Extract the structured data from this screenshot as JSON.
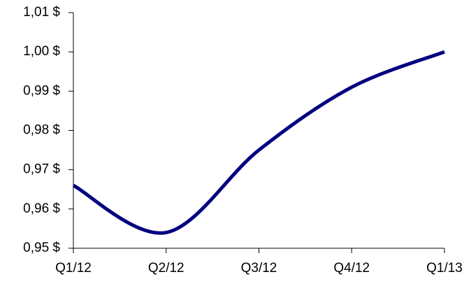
{
  "chart_data": {
    "type": "line",
    "categories": [
      "Q1/12",
      "Q2/12",
      "Q3/12",
      "Q4/12",
      "Q1/13"
    ],
    "values": [
      0.966,
      0.954,
      0.975,
      0.991,
      1.0
    ],
    "color": "#000080",
    "ylim": [
      0.95,
      1.01
    ],
    "yticks": [
      {
        "value": 0.95,
        "label": "0,95 $"
      },
      {
        "value": 0.96,
        "label": "0,96 $"
      },
      {
        "value": 0.97,
        "label": "0,97 $"
      },
      {
        "value": 0.98,
        "label": "0,98 $"
      },
      {
        "value": 0.99,
        "label": "0,99 $"
      },
      {
        "value": 1.0,
        "label": "1,00 $"
      },
      {
        "value": 1.01,
        "label": "1,01 $"
      }
    ],
    "smooth": true
  }
}
